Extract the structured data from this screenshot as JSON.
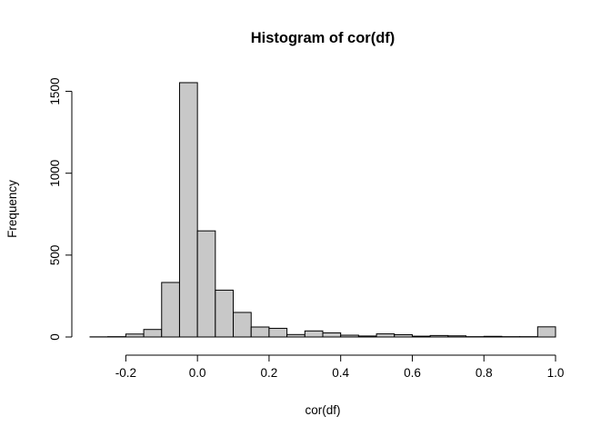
{
  "chart_data": {
    "type": "bar",
    "title": "Histogram of cor(df)",
    "xlabel": "cor(df)",
    "ylabel": "Frequency",
    "bar_color": "#c8c8c8",
    "bin_width": 0.05,
    "xlim": [
      -0.3,
      1.0
    ],
    "ylim": [
      0,
      1550
    ],
    "x_ticks": [
      -0.2,
      0.0,
      0.2,
      0.4,
      0.6,
      0.8,
      1.0
    ],
    "x_tick_labels": [
      "-0.2",
      "0.0",
      "0.2",
      "0.4",
      "0.6",
      "0.8",
      "1.0"
    ],
    "y_ticks": [
      0,
      500,
      1000,
      1500
    ],
    "y_tick_labels": [
      "0",
      "500",
      "1000",
      "1500"
    ],
    "bins": [
      {
        "x0": -0.3,
        "x1": -0.25,
        "count": 1
      },
      {
        "x0": -0.25,
        "x1": -0.2,
        "count": 2
      },
      {
        "x0": -0.2,
        "x1": -0.15,
        "count": 18
      },
      {
        "x0": -0.15,
        "x1": -0.1,
        "count": 46
      },
      {
        "x0": -0.1,
        "x1": -0.05,
        "count": 333
      },
      {
        "x0": -0.05,
        "x1": 0.0,
        "count": 1553
      },
      {
        "x0": 0.0,
        "x1": 0.05,
        "count": 648
      },
      {
        "x0": 0.05,
        "x1": 0.1,
        "count": 286
      },
      {
        "x0": 0.1,
        "x1": 0.15,
        "count": 150
      },
      {
        "x0": 0.15,
        "x1": 0.2,
        "count": 61
      },
      {
        "x0": 0.2,
        "x1": 0.25,
        "count": 53
      },
      {
        "x0": 0.25,
        "x1": 0.3,
        "count": 15
      },
      {
        "x0": 0.3,
        "x1": 0.35,
        "count": 37
      },
      {
        "x0": 0.35,
        "x1": 0.4,
        "count": 25
      },
      {
        "x0": 0.4,
        "x1": 0.45,
        "count": 11
      },
      {
        "x0": 0.45,
        "x1": 0.5,
        "count": 6
      },
      {
        "x0": 0.5,
        "x1": 0.55,
        "count": 19
      },
      {
        "x0": 0.55,
        "x1": 0.6,
        "count": 14
      },
      {
        "x0": 0.6,
        "x1": 0.65,
        "count": 5
      },
      {
        "x0": 0.65,
        "x1": 0.7,
        "count": 9
      },
      {
        "x0": 0.7,
        "x1": 0.75,
        "count": 7
      },
      {
        "x0": 0.75,
        "x1": 0.8,
        "count": 2
      },
      {
        "x0": 0.8,
        "x1": 0.85,
        "count": 4
      },
      {
        "x0": 0.85,
        "x1": 0.9,
        "count": 2
      },
      {
        "x0": 0.9,
        "x1": 0.95,
        "count": 2
      },
      {
        "x0": 0.95,
        "x1": 1.0,
        "count": 62
      }
    ]
  }
}
